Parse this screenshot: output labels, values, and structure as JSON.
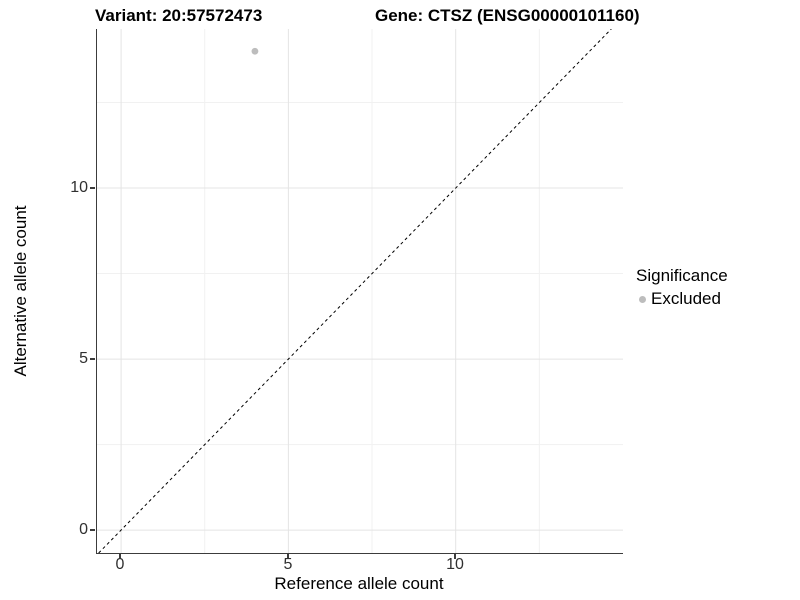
{
  "titles": {
    "variant": "Variant: 20:57572473",
    "gene": "Gene: CTSZ (ENSG00000101160)"
  },
  "x_axis": {
    "label": "Reference allele count",
    "tick_labels": [
      "0",
      "5",
      "10"
    ]
  },
  "y_axis": {
    "label": "Alternative allele count",
    "tick_labels": [
      "0",
      "5",
      "10"
    ]
  },
  "legend": {
    "title": "Significance",
    "items": [
      {
        "label": "Excluded",
        "color": "#bdbdbd"
      }
    ]
  },
  "colors": {
    "background": "#ffffff",
    "axis_line": "#3c3c3c",
    "grid_major": "#e4e4e4",
    "grid_minor": "#f1f1f1",
    "tick_text": "#303030",
    "point": "#bdbdbd",
    "identity_line": "#000000"
  },
  "chart_data": {
    "type": "scatter",
    "title": "Variant: 20:57572473 — Gene: CTSZ (ENSG00000101160)",
    "xlabel": "Reference allele count",
    "ylabel": "Alternative allele count",
    "xlim": [
      -0.72,
      15.0
    ],
    "ylim": [
      -0.67,
      14.65
    ],
    "x_major_ticks": [
      0,
      5,
      10
    ],
    "x_minor_ticks": [
      2.5,
      7.5,
      12.5
    ],
    "y_major_ticks": [
      0,
      5,
      10
    ],
    "y_minor_ticks": [
      2.5,
      7.5,
      12.5
    ],
    "grid": "major and minor gridlines, light gray, white background",
    "legend_position": "right",
    "series": [
      {
        "name": "Excluded",
        "color": "#bdbdbd",
        "points": [
          {
            "x": 4,
            "y": 14
          }
        ]
      }
    ],
    "reference_line": {
      "type": "identity y=x",
      "slope": 1,
      "intercept": 0,
      "linestyle": "dashed",
      "color": "#000000"
    }
  }
}
